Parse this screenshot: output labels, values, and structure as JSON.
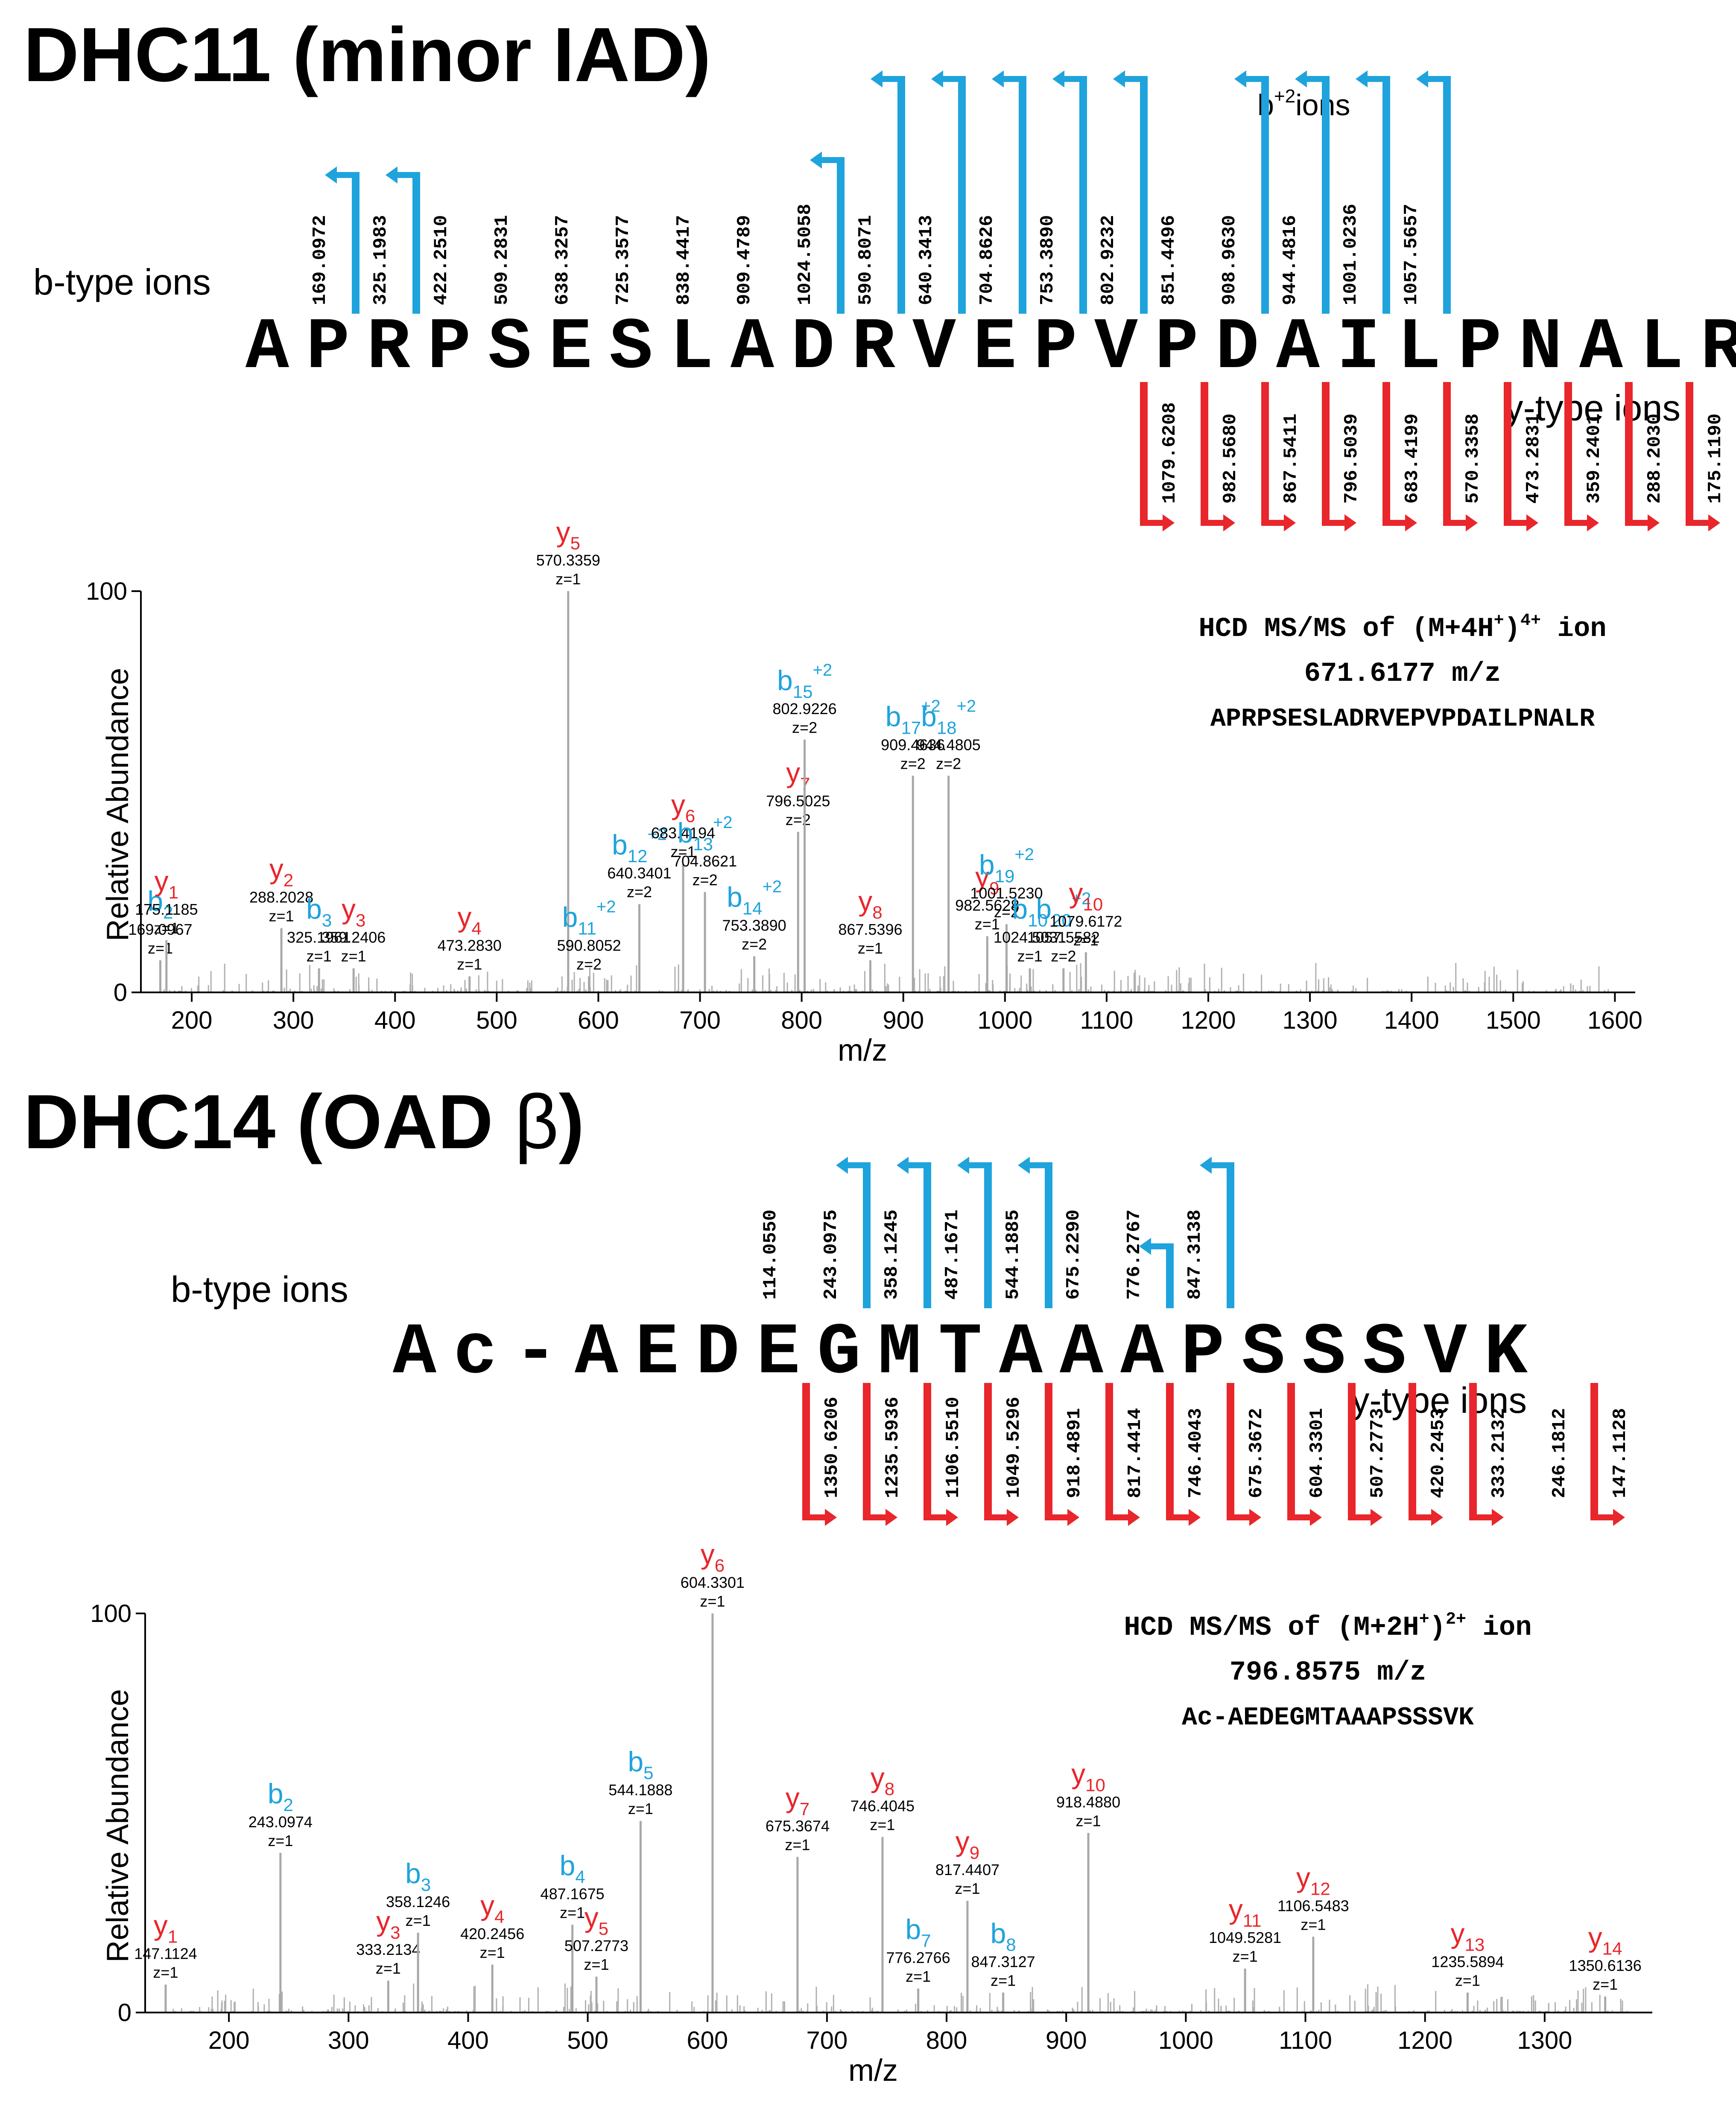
{
  "colors": {
    "b_ion": "#1fa3dc",
    "y_ion": "#e8262b",
    "text": "#000000",
    "peak": "#b0b0b0",
    "axis": "#000000"
  },
  "chart_data": [
    {
      "type": "bar",
      "panel_title": "DHC11 (minor IAD)",
      "sequence": "APRPSESLADRVEPVPDAILPNALR",
      "b_ions_label": "b-type ions",
      "y_ions_label": "y-type ions",
      "b2_label": "b",
      "b2_sup": "+2",
      "b2_suffix": "ions",
      "b_fragments": [
        {
          "after": 2,
          "mz": "169.0972",
          "obs": true
        },
        {
          "after": 3,
          "mz": "325.1983",
          "obs": true
        },
        {
          "after": 4,
          "mz": "422.2510",
          "obs": false
        },
        {
          "after": 5,
          "mz": "509.2831",
          "obs": false
        },
        {
          "after": 6,
          "mz": "638.3257",
          "obs": false
        },
        {
          "after": 7,
          "mz": "725.3577",
          "obs": false
        },
        {
          "after": 8,
          "mz": "838.4417",
          "obs": false
        },
        {
          "after": 9,
          "mz": "909.4789",
          "obs": false
        },
        {
          "after": 10,
          "mz": "1024.5058",
          "obs": true
        },
        {
          "after": 11,
          "mz": "590.8071",
          "obs": true,
          "doubly": true
        },
        {
          "after": 12,
          "mz": "640.3413",
          "obs": true,
          "doubly": true
        },
        {
          "after": 13,
          "mz": "704.8626",
          "obs": true,
          "doubly": true
        },
        {
          "after": 14,
          "mz": "753.3890",
          "obs": true,
          "doubly": true
        },
        {
          "after": 15,
          "mz": "802.9232",
          "obs": true,
          "doubly": true
        },
        {
          "after": 16,
          "mz": "851.4496",
          "obs": false,
          "doubly": true
        },
        {
          "after": 17,
          "mz": "908.9630",
          "obs": true,
          "doubly": true
        },
        {
          "after": 18,
          "mz": "944.4816",
          "obs": true,
          "doubly": true
        },
        {
          "after": 19,
          "mz": "1001.0236",
          "obs": true,
          "doubly": true
        },
        {
          "after": 20,
          "mz": "1057.5657",
          "obs": true,
          "doubly": true
        }
      ],
      "y_fragments": [
        {
          "after": 15,
          "mz": "1079.6208",
          "obs": true
        },
        {
          "after": 16,
          "mz": "982.5680",
          "obs": true
        },
        {
          "after": 17,
          "mz": "867.5411",
          "obs": true
        },
        {
          "after": 18,
          "mz": "796.5039",
          "obs": true
        },
        {
          "after": 19,
          "mz": "683.4199",
          "obs": true
        },
        {
          "after": 20,
          "mz": "570.3358",
          "obs": true
        },
        {
          "after": 21,
          "mz": "473.2831",
          "obs": true
        },
        {
          "after": 22,
          "mz": "359.2401",
          "obs": true
        },
        {
          "after": 23,
          "mz": "288.2030",
          "obs": true
        },
        {
          "after": 24,
          "mz": "175.1190",
          "obs": true
        }
      ],
      "xlabel": "m/z",
      "ylabel": "Relative Abundance",
      "xlim": [
        150,
        1620
      ],
      "ylim": [
        0,
        100
      ],
      "xticks": [
        200,
        300,
        400,
        500,
        600,
        700,
        800,
        900,
        1000,
        1100,
        1200,
        1300,
        1400,
        1500,
        1600
      ],
      "yticks": [
        0,
        100
      ],
      "info_lines": [
        "HCD MS/MS of (M+4H",
        "671.6177 m/z",
        "APRPSESLADRVEPVPDAILPNALR"
      ],
      "info_sup1": "+",
      "info_tail": ")",
      "info_sup2": "4+",
      "info_end": " ion",
      "labeled_peaks": [
        {
          "ion": "b",
          "sub": "2",
          "sup": "",
          "mz": 169.0967,
          "mz_text": "169.0967",
          "z": "z=1",
          "height": 8
        },
        {
          "ion": "y",
          "sub": "1",
          "sup": "",
          "mz": 175.1185,
          "mz_text": "175.1185",
          "z": "z=1",
          "height": 13
        },
        {
          "ion": "y",
          "sub": "2",
          "sup": "",
          "mz": 288.2028,
          "mz_text": "288.2028",
          "z": "z=1",
          "height": 16
        },
        {
          "ion": "b",
          "sub": "3",
          "sup": "",
          "mz": 325.1961,
          "mz_text": "325.1961",
          "z": "z=1",
          "height": 6
        },
        {
          "ion": "y",
          "sub": "3",
          "sup": "",
          "mz": 359.2406,
          "mz_text": "359.2406",
          "z": "z=1",
          "height": 6
        },
        {
          "ion": "y",
          "sub": "4",
          "sup": "",
          "mz": 473.283,
          "mz_text": "473.2830",
          "z": "z=1",
          "height": 4
        },
        {
          "ion": "y",
          "sub": "5",
          "sup": "",
          "mz": 570.3359,
          "mz_text": "570.3359",
          "z": "z=1",
          "height": 100
        },
        {
          "ion": "b",
          "sub": "11",
          "sup": "+2",
          "mz": 590.8052,
          "mz_text": "590.8052",
          "z": "z=2",
          "height": 4
        },
        {
          "ion": "b",
          "sub": "12",
          "sup": "+2",
          "mz": 640.3401,
          "mz_text": "640.3401",
          "z": "z=2",
          "height": 22
        },
        {
          "ion": "y",
          "sub": "6",
          "sup": "",
          "mz": 683.4194,
          "mz_text": "683.4194",
          "z": "z=1",
          "height": 32
        },
        {
          "ion": "b",
          "sub": "13",
          "sup": "+2",
          "mz": 704.8621,
          "mz_text": "704.8621",
          "z": "z=2",
          "height": 25
        },
        {
          "ion": "b",
          "sub": "14",
          "sup": "+2",
          "mz": 753.389,
          "mz_text": "753.3890",
          "z": "z=2",
          "height": 9
        },
        {
          "ion": "y",
          "sub": "7",
          "sup": "",
          "mz": 796.5025,
          "mz_text": "796.5025",
          "z": "z=2",
          "height": 40
        },
        {
          "ion": "b",
          "sub": "15",
          "sup": "+2",
          "mz": 802.9226,
          "mz_text": "802.9226",
          "z": "z=2",
          "height": 63
        },
        {
          "ion": "y",
          "sub": "8",
          "sup": "",
          "mz": 867.5396,
          "mz_text": "867.5396",
          "z": "z=1",
          "height": 8
        },
        {
          "ion": "b",
          "sub": "17",
          "sup": "+2",
          "mz": 909.4636,
          "mz_text": "909.4636",
          "z": "z=2",
          "height": 54
        },
        {
          "ion": "b",
          "sub": "18",
          "sup": "+2",
          "mz": 944.4805,
          "mz_text": "944.4805",
          "z": "z=2",
          "height": 54
        },
        {
          "ion": "y",
          "sub": "9",
          "sup": "",
          "mz": 982.5628,
          "mz_text": "982.5628",
          "z": "z=1",
          "height": 14
        },
        {
          "ion": "b",
          "sub": "19",
          "sup": "+2",
          "mz": 1001.523,
          "mz_text": "1001.5230",
          "z": "z=2",
          "height": 17
        },
        {
          "ion": "b",
          "sub": "10",
          "sup": "",
          "mz": 1024.5031,
          "mz_text": "1024.5031",
          "z": "z=1",
          "height": 6
        },
        {
          "ion": "b",
          "sub": "20",
          "sup": "+2",
          "mz": 1057.5582,
          "mz_text": "1057.5582",
          "z": "z=2",
          "height": 6
        },
        {
          "ion": "y",
          "sub": "10",
          "sup": "",
          "mz": 1079.6172,
          "mz_text": "1079.6172",
          "z": "z=1",
          "height": 10
        }
      ]
    },
    {
      "type": "bar",
      "panel_title_main": "DHC14 (OAD ",
      "panel_title_greek": "β",
      "panel_title_end": ")",
      "sequence": "Ac-AEDEGMTAAAPSSSVK",
      "b_ions_label": "b-type ions",
      "y_ions_label": "y-type ions",
      "b_fragments": [
        {
          "after": 4,
          "mz": "114.0550",
          "obs": false
        },
        {
          "after": 5,
          "mz": "243.0975",
          "obs": true
        },
        {
          "after": 6,
          "mz": "358.1245",
          "obs": true
        },
        {
          "after": 7,
          "mz": "487.1671",
          "obs": true
        },
        {
          "after": 8,
          "mz": "544.1885",
          "obs": true
        },
        {
          "after": 9,
          "mz": "675.2290",
          "obs": false
        },
        {
          "after": 10,
          "mz": "776.2767",
          "obs": true
        },
        {
          "after": 11,
          "mz": "847.3138",
          "obs": true
        }
      ],
      "y_fragments": [
        {
          "after": 4,
          "mz": "1350.6206",
          "obs": true
        },
        {
          "after": 5,
          "mz": "1235.5936",
          "obs": true
        },
        {
          "after": 6,
          "mz": "1106.5510",
          "obs": true
        },
        {
          "after": 7,
          "mz": "1049.5296",
          "obs": true
        },
        {
          "after": 8,
          "mz": "918.4891",
          "obs": true
        },
        {
          "after": 9,
          "mz": "817.4414",
          "obs": true
        },
        {
          "after": 10,
          "mz": "746.4043",
          "obs": true
        },
        {
          "after": 11,
          "mz": "675.3672",
          "obs": true
        },
        {
          "after": 12,
          "mz": "604.3301",
          "obs": true
        },
        {
          "after": 13,
          "mz": "507.2773",
          "obs": true
        },
        {
          "after": 14,
          "mz": "420.2453",
          "obs": true
        },
        {
          "after": 15,
          "mz": "333.2132",
          "obs": true
        },
        {
          "after": 16,
          "mz": "246.1812",
          "obs": false
        },
        {
          "after": 17,
          "mz": "147.1128",
          "obs": true
        }
      ],
      "xlabel": "m/z",
      "ylabel": "Relative Abundance",
      "xlim": [
        130,
        1390
      ],
      "ylim": [
        0,
        100
      ],
      "xticks": [
        200,
        300,
        400,
        500,
        600,
        700,
        800,
        900,
        1000,
        1100,
        1200,
        1300
      ],
      "yticks": [
        0,
        100
      ],
      "info_lines": [
        "HCD MS/MS of (M+2H",
        "796.8575 m/z",
        "Ac-AEDEGMTAAAPSSSVK"
      ],
      "info_sup1": "+",
      "info_tail": ")",
      "info_sup2": "2+",
      "info_end": " ion",
      "labeled_peaks": [
        {
          "ion": "y",
          "sub": "1",
          "sup": "",
          "mz": 147.1124,
          "mz_text": "147.1124",
          "z": "z=1",
          "height": 7
        },
        {
          "ion": "b",
          "sub": "2",
          "sup": "",
          "mz": 243.0974,
          "mz_text": "243.0974",
          "z": "z=1",
          "height": 40
        },
        {
          "ion": "y",
          "sub": "3",
          "sup": "",
          "mz": 333.2134,
          "mz_text": "333.2134",
          "z": "z=1",
          "height": 8
        },
        {
          "ion": "b",
          "sub": "3",
          "sup": "",
          "mz": 358.1246,
          "mz_text": "358.1246",
          "z": "z=1",
          "height": 20
        },
        {
          "ion": "y",
          "sub": "4",
          "sup": "",
          "mz": 420.2456,
          "mz_text": "420.2456",
          "z": "z=1",
          "height": 12
        },
        {
          "ion": "b",
          "sub": "4",
          "sup": "",
          "mz": 487.1675,
          "mz_text": "487.1675",
          "z": "z=1",
          "height": 22
        },
        {
          "ion": "y",
          "sub": "5",
          "sup": "",
          "mz": 507.2773,
          "mz_text": "507.2773",
          "z": "z=1",
          "height": 9
        },
        {
          "ion": "b",
          "sub": "5",
          "sup": "",
          "mz": 544.1888,
          "mz_text": "544.1888",
          "z": "z=1",
          "height": 48
        },
        {
          "ion": "y",
          "sub": "6",
          "sup": "",
          "mz": 604.3301,
          "mz_text": "604.3301",
          "z": "z=1",
          "height": 100
        },
        {
          "ion": "y",
          "sub": "7",
          "sup": "",
          "mz": 675.3674,
          "mz_text": "675.3674",
          "z": "z=1",
          "height": 39
        },
        {
          "ion": "y",
          "sub": "8",
          "sup": "",
          "mz": 746.4045,
          "mz_text": "746.4045",
          "z": "z=1",
          "height": 44
        },
        {
          "ion": "b",
          "sub": "7",
          "sup": "",
          "mz": 776.2766,
          "mz_text": "776.2766",
          "z": "z=1",
          "height": 6
        },
        {
          "ion": "y",
          "sub": "9",
          "sup": "",
          "mz": 817.4407,
          "mz_text": "817.4407",
          "z": "z=1",
          "height": 28
        },
        {
          "ion": "b",
          "sub": "8",
          "sup": "",
          "mz": 847.3127,
          "mz_text": "847.3127",
          "z": "z=1",
          "height": 5
        },
        {
          "ion": "y",
          "sub": "10",
          "sup": "",
          "mz": 918.488,
          "mz_text": "918.4880",
          "z": "z=1",
          "height": 45
        },
        {
          "ion": "y",
          "sub": "11",
          "sup": "",
          "mz": 1049.5281,
          "mz_text": "1049.5281",
          "z": "z=1",
          "height": 11
        },
        {
          "ion": "y",
          "sub": "12",
          "sup": "",
          "mz": 1106.5483,
          "mz_text": "1106.5483",
          "z": "z=1",
          "height": 19
        },
        {
          "ion": "y",
          "sub": "13",
          "sup": "",
          "mz": 1235.5894,
          "mz_text": "1235.5894",
          "z": "z=1",
          "height": 5
        },
        {
          "ion": "y",
          "sub": "14",
          "sup": "",
          "mz": 1350.6136,
          "mz_text": "1350.6136",
          "z": "z=1",
          "height": 4
        }
      ]
    }
  ]
}
